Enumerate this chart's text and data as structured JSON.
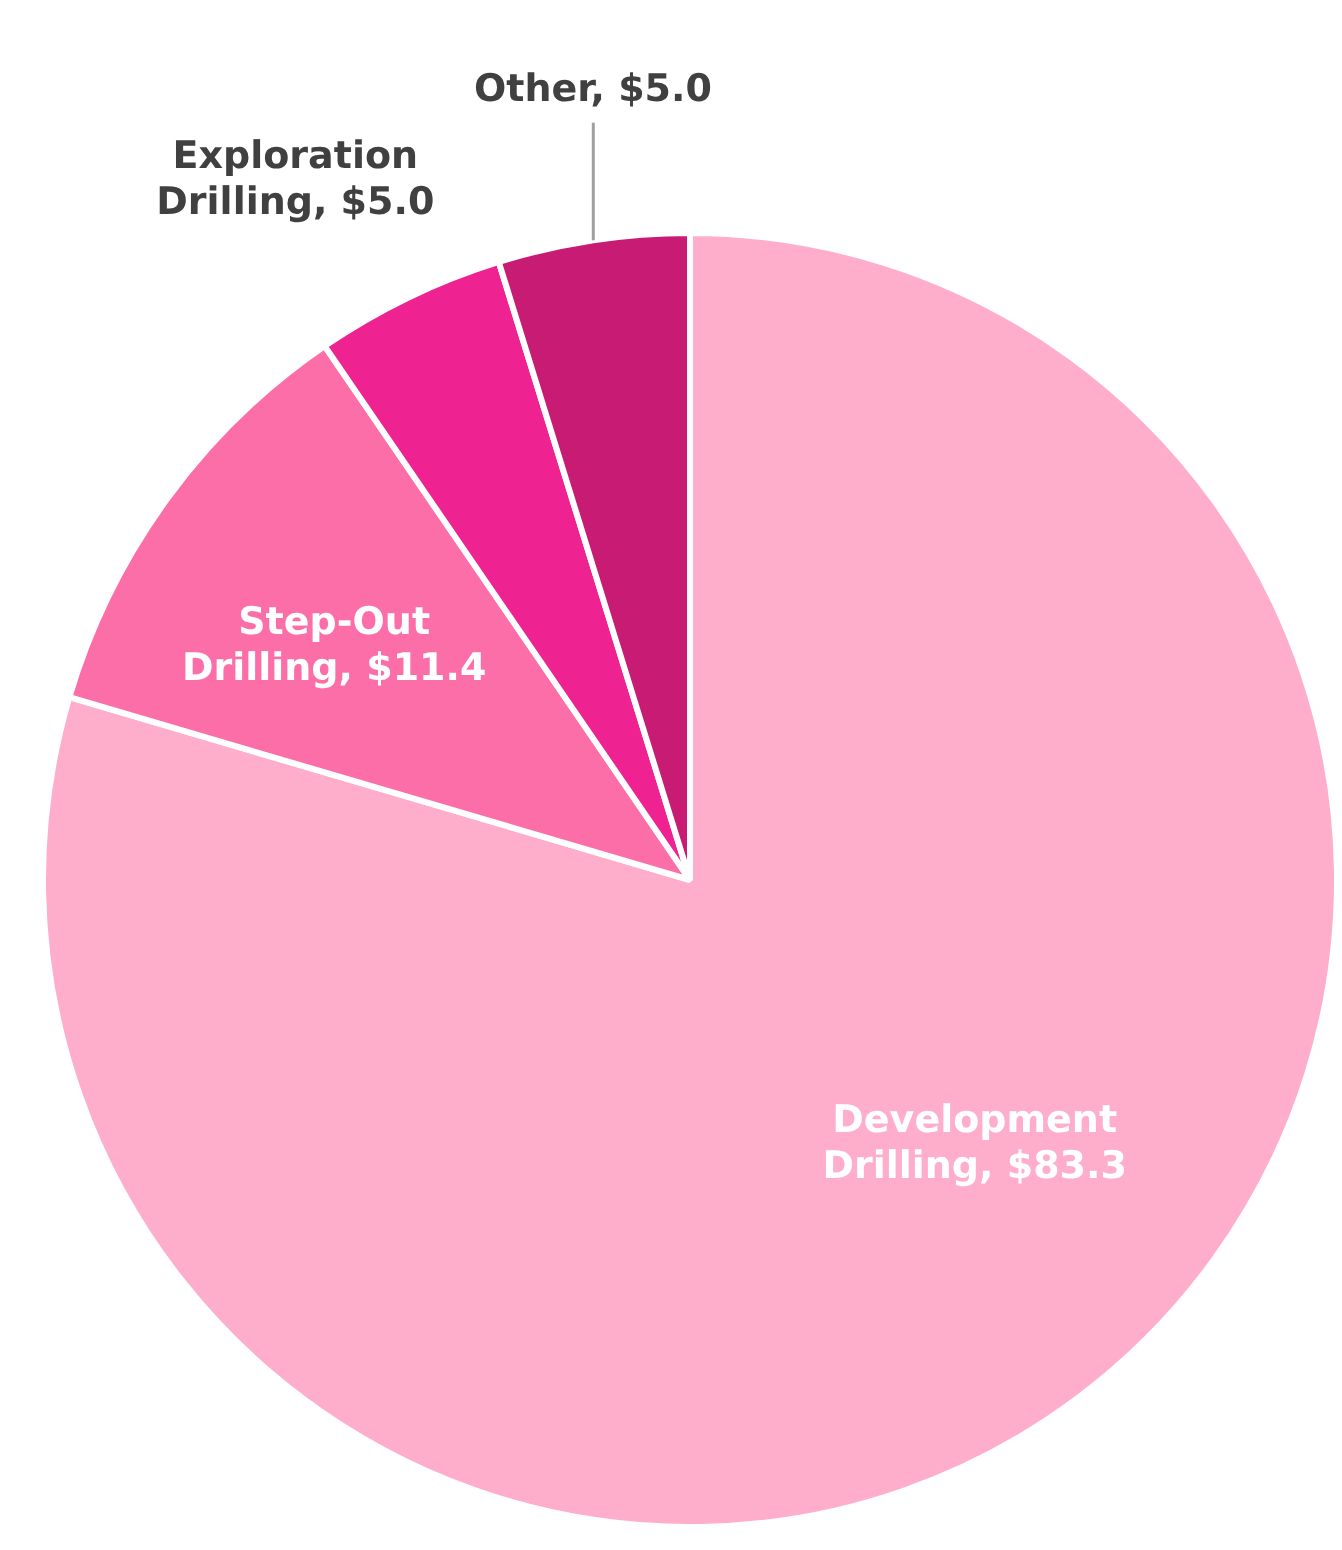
{
  "chart_data": {
    "type": "pie",
    "categories": [
      "Development Drilling",
      "Step-Out Drilling",
      "Exploration Drilling",
      "Other"
    ],
    "values": [
      83.3,
      11.4,
      5.0,
      5.0
    ],
    "value_labels": [
      "$83.3",
      "$11.4",
      "$5.0",
      "$5.0"
    ],
    "colors": [
      "#feadca",
      "#fc6ea8",
      "#ee2290",
      "#c71b74"
    ],
    "legend": false
  }
}
